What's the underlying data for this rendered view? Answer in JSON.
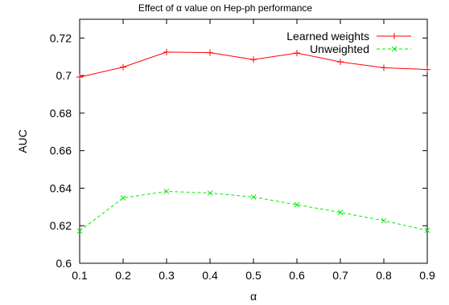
{
  "chart_data": {
    "type": "line",
    "title": "Effect of α value on Hep-ph performance",
    "xlabel": "α",
    "ylabel": "AUC",
    "x": [
      0.1,
      0.2,
      0.3,
      0.4,
      0.5,
      0.6,
      0.7,
      0.8,
      0.9
    ],
    "xlim": [
      0.1,
      0.9
    ],
    "ylim": [
      0.6,
      0.73
    ],
    "x_ticks": [
      "0.1",
      "0.2",
      "0.3",
      "0.4",
      "0.5",
      "0.6",
      "0.7",
      "0.8",
      "0.9"
    ],
    "y_ticks": [
      "0.6",
      "0.62",
      "0.64",
      "0.66",
      "0.68",
      "0.7",
      "0.72"
    ],
    "grid": false,
    "legend_position": "top-right",
    "series": [
      {
        "name": "Learned weights",
        "color": "#ff0000",
        "marker": "plus",
        "line": "solid",
        "values": [
          0.6992,
          0.7045,
          0.7125,
          0.7122,
          0.7085,
          0.712,
          0.7073,
          0.7042,
          0.7032
        ]
      },
      {
        "name": "Unweighted",
        "color": "#00ee00",
        "marker": "cross",
        "line": "dashed",
        "values": [
          0.6172,
          0.6348,
          0.6383,
          0.6374,
          0.6353,
          0.6312,
          0.6271,
          0.6227,
          0.6175
        ]
      }
    ]
  }
}
